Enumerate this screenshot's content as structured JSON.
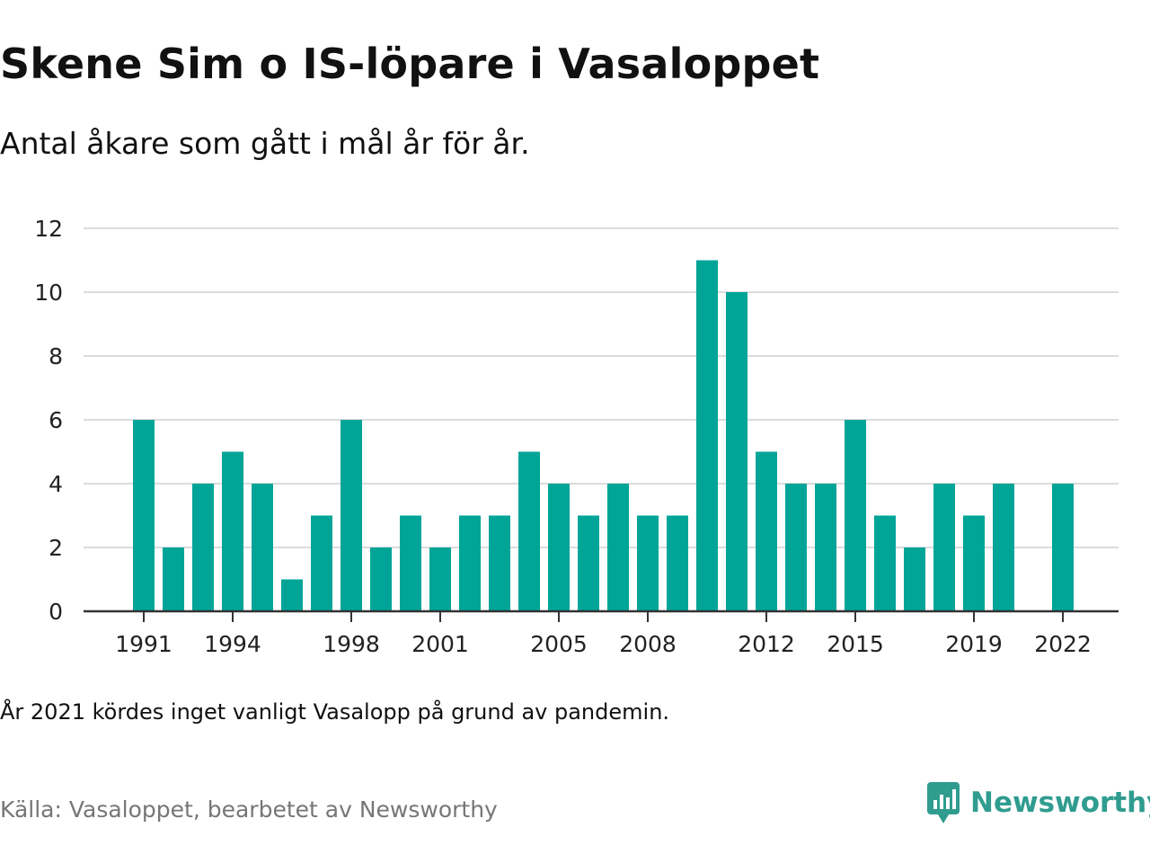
{
  "header": {
    "title": "Skene Sim o IS-löpare i Vasaloppet",
    "subtitle": "Antal åkare som gått i mål år för år."
  },
  "footer": {
    "note": "År 2021 kördes inget vanligt Vasalopp på grund av pandemin.",
    "source": "Källa: Vasaloppet, bearbetet av Newsworthy",
    "brand": "Newsworthy",
    "brand_icon": "newsworthy-logo-icon"
  },
  "colors": {
    "bar": "#00a598",
    "grid": "#dcdcdc",
    "axis": "#333333",
    "brand": "#2f9c8f"
  },
  "chart_data": {
    "type": "bar",
    "x": [
      1991,
      1992,
      1993,
      1994,
      1995,
      1996,
      1997,
      1998,
      1999,
      2000,
      2001,
      2002,
      2003,
      2004,
      2005,
      2006,
      2007,
      2008,
      2009,
      2010,
      2011,
      2012,
      2013,
      2014,
      2015,
      2016,
      2017,
      2018,
      2019,
      2020,
      2021,
      2022
    ],
    "values": [
      6,
      2,
      4,
      5,
      4,
      1,
      3,
      6,
      2,
      3,
      2,
      3,
      3,
      5,
      4,
      3,
      4,
      3,
      3,
      11,
      10,
      5,
      4,
      4,
      6,
      3,
      2,
      4,
      3,
      4,
      null,
      4
    ],
    "x_tick_labels": [
      "1991",
      "1994",
      "1998",
      "2001",
      "2005",
      "2008",
      "2012",
      "2015",
      "2019",
      "2022"
    ],
    "y_tick_labels": [
      "0",
      "2",
      "4",
      "6",
      "8",
      "10",
      "12"
    ],
    "ylim": [
      0,
      12
    ],
    "grid": true
  }
}
